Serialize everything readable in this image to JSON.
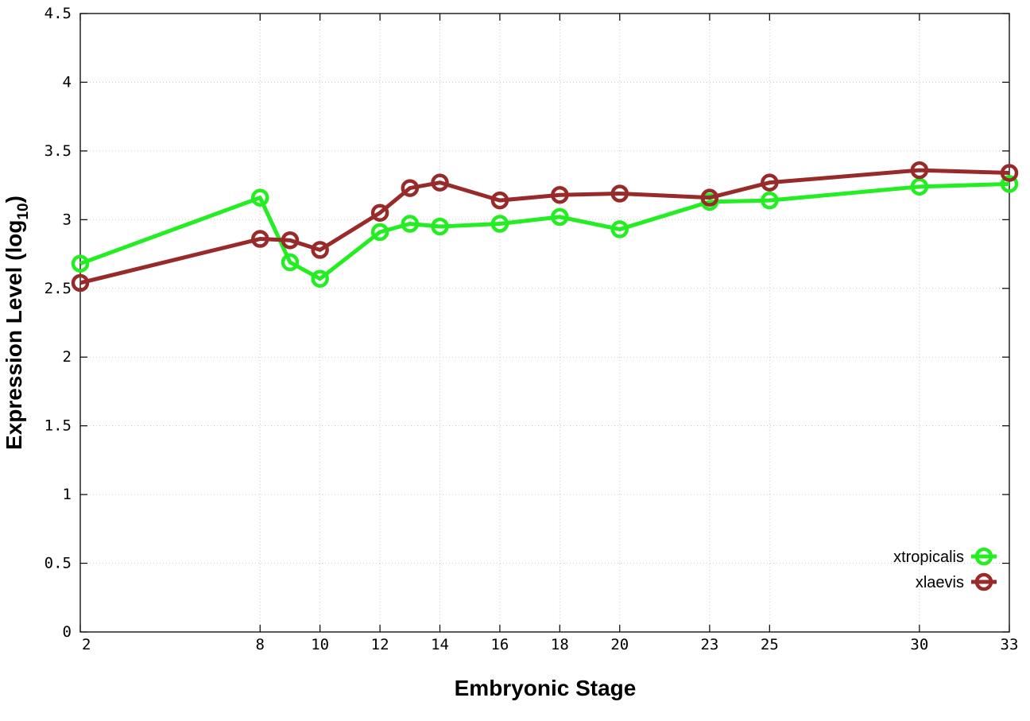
{
  "chart_data": {
    "type": "line",
    "title": "",
    "xlabel": "Embryonic Stage",
    "ylabel_main": "Expression Level (log",
    "ylabel_sub": "10",
    "ylabel_close": ")",
    "x": [
      2,
      8,
      9,
      10,
      12,
      13,
      14,
      16,
      18,
      20,
      23,
      25,
      30,
      33
    ],
    "xticks": [
      2,
      8,
      10,
      12,
      14,
      16,
      18,
      20,
      23,
      25,
      30,
      33
    ],
    "xtick_labels": [
      "2",
      "8",
      "10",
      "12",
      "14",
      "16",
      "18",
      "20",
      "23",
      "25",
      "30",
      "33"
    ],
    "yticks": [
      0,
      0.5,
      1,
      1.5,
      2,
      2.5,
      3,
      3.5,
      4,
      4.5
    ],
    "ytick_labels": [
      "0",
      "0.5",
      "1",
      "1.5",
      "2",
      "2.5",
      "3",
      "3.5",
      "4",
      "4.5"
    ],
    "xlim": [
      2,
      33
    ],
    "ylim": [
      0,
      4.5
    ],
    "grid": true,
    "legend_position": "bottom-right",
    "series": [
      {
        "name": "xtropicalis",
        "color": "#22ee22",
        "values": [
          2.68,
          3.16,
          2.69,
          2.57,
          2.91,
          2.97,
          2.95,
          2.97,
          3.02,
          2.93,
          3.13,
          3.14,
          3.24,
          3.26
        ]
      },
      {
        "name": "xlaevis",
        "color": "#992a2a",
        "values": [
          2.54,
          2.86,
          2.85,
          2.78,
          3.05,
          3.23,
          3.27,
          3.14,
          3.18,
          3.19,
          3.16,
          3.27,
          3.36,
          3.34
        ]
      }
    ]
  }
}
